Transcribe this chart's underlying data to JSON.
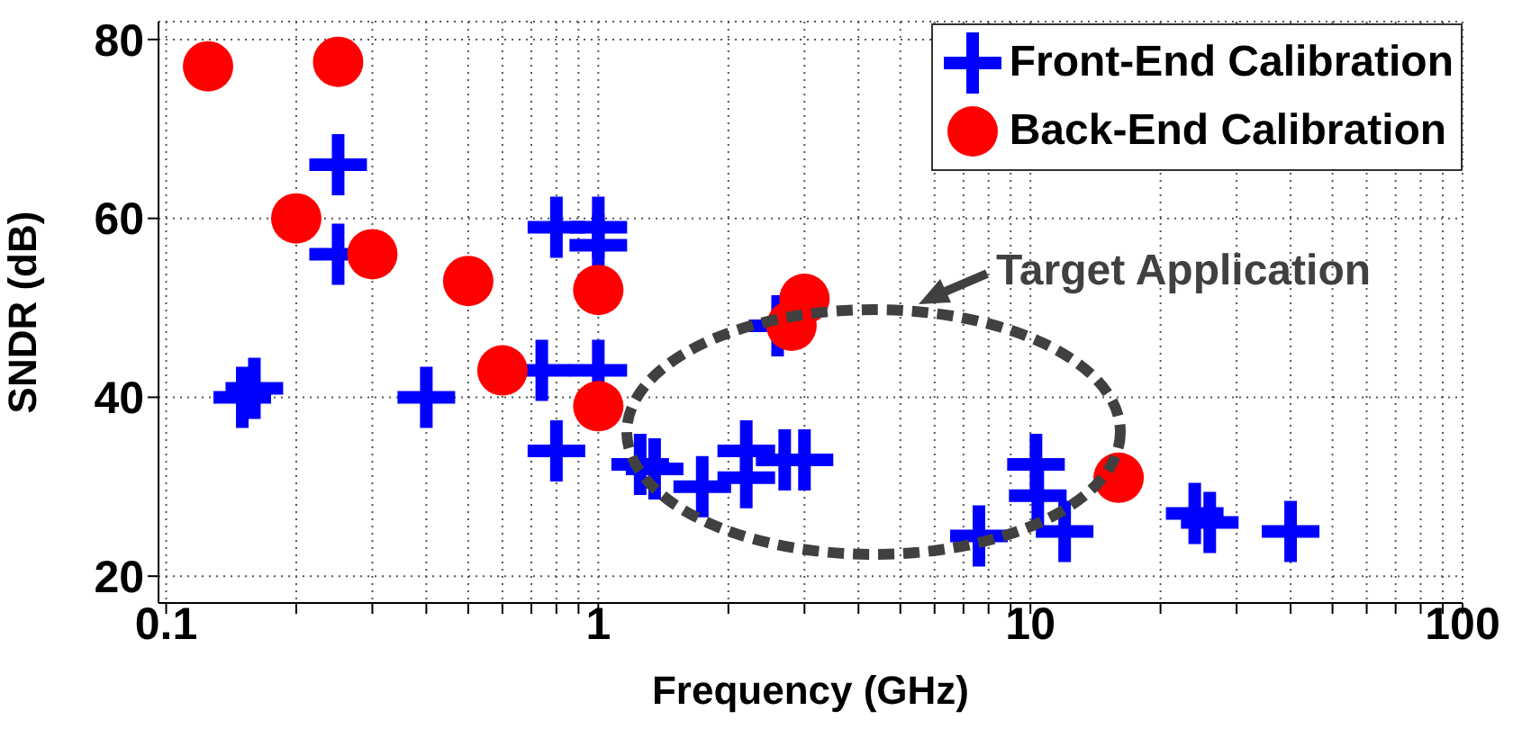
{
  "chart_data": {
    "type": "scatter",
    "xlabel": "Frequency (GHz)",
    "ylabel": "SNDR (dB)",
    "log": "x",
    "grid": true,
    "legend": "top right",
    "xlim": [
      0.096,
      100
    ],
    "ylim": [
      17,
      82
    ],
    "xticks": [
      0.1,
      {
        "value": 0.2,
        "label": null
      },
      {
        "value": 0.3,
        "label": null
      },
      {
        "value": 0.4,
        "label": null
      },
      {
        "value": 0.5,
        "label": null
      },
      {
        "value": 0.6,
        "label": null
      },
      {
        "value": 0.7,
        "label": null
      },
      {
        "value": 0.8,
        "label": null
      },
      {
        "value": 0.9,
        "label": null
      },
      1,
      {
        "value": 2,
        "label": null
      },
      {
        "value": 3,
        "label": null
      },
      {
        "value": 4,
        "label": null
      },
      {
        "value": 5,
        "label": null
      },
      {
        "value": 6,
        "label": null
      },
      {
        "value": 7,
        "label": null
      },
      {
        "value": 8,
        "label": null
      },
      {
        "value": 9,
        "label": null
      },
      10,
      {
        "value": 20,
        "label": null
      },
      {
        "value": 30,
        "label": null
      },
      {
        "value": 40,
        "label": null
      },
      {
        "value": 50,
        "label": null
      },
      {
        "value": 60,
        "label": null
      },
      {
        "value": 70,
        "label": null
      },
      {
        "value": 80,
        "label": null
      },
      {
        "value": 90,
        "label": null
      },
      100
    ],
    "yticks": [
      20,
      40,
      60,
      80
    ],
    "annotations": [
      "Target Application"
    ],
    "series": [
      {
        "name": "Front-End Calibration",
        "color": "#0000ff",
        "marker": "cross",
        "x": [
          0.15,
          0.16,
          0.25,
          0.25,
          0.4,
          0.8,
          1,
          1,
          0.74,
          1,
          0.8,
          1.25,
          1.35,
          2.6,
          1.74,
          2.2,
          2.2,
          2.7,
          3,
          10.3,
          10.4,
          7.6,
          12,
          24,
          26,
          40
        ],
        "values": [
          40,
          41,
          66,
          56,
          40,
          59,
          59,
          57,
          43,
          43,
          34,
          32.5,
          32,
          48,
          30,
          31,
          34,
          33,
          33,
          32.5,
          29,
          24.5,
          25,
          27,
          26,
          25
        ]
      },
      {
        "name": "Back-End Calibration",
        "color": "#ff0000",
        "marker": "circle",
        "x": [
          0.125,
          0.25,
          0.2,
          0.3,
          0.5,
          0.6,
          1,
          1,
          2.8,
          3,
          16
        ],
        "values": [
          77,
          77.5,
          60,
          56,
          53,
          43,
          52,
          39,
          48,
          51,
          31
        ]
      }
    ]
  }
}
